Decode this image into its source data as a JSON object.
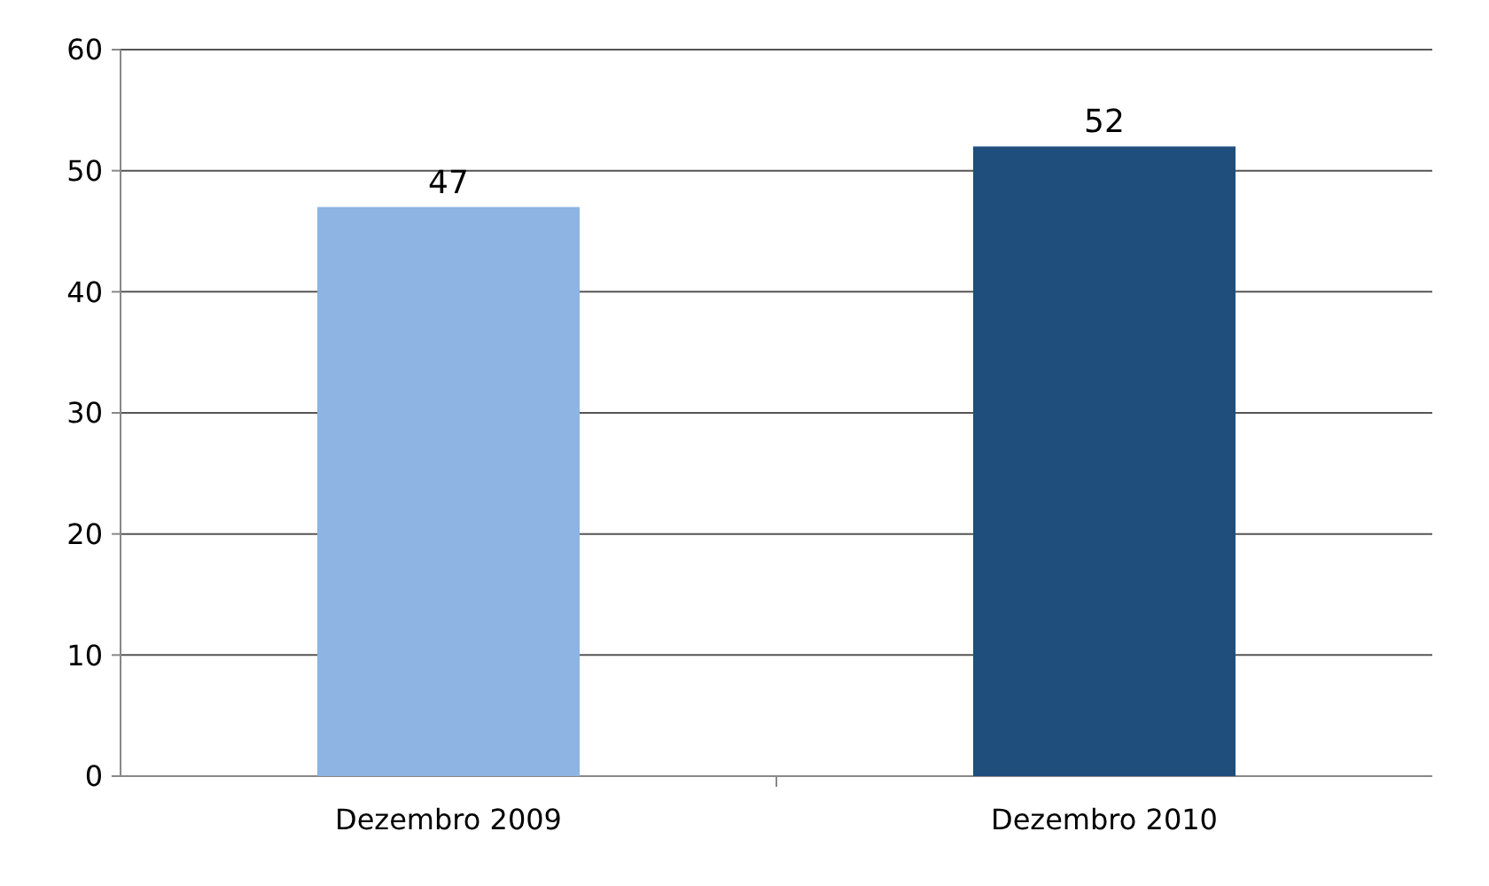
{
  "chart_data": {
    "type": "bar",
    "categories": [
      "Dezembro 2009",
      "Dezembro 2010"
    ],
    "values": [
      47,
      52
    ],
    "colors": [
      "#8db4e2",
      "#1f4e7d"
    ],
    "ylim": [
      0,
      60
    ],
    "yticks": [
      0,
      10,
      20,
      30,
      40,
      50,
      60
    ],
    "grid": "y",
    "data_labels": true
  }
}
